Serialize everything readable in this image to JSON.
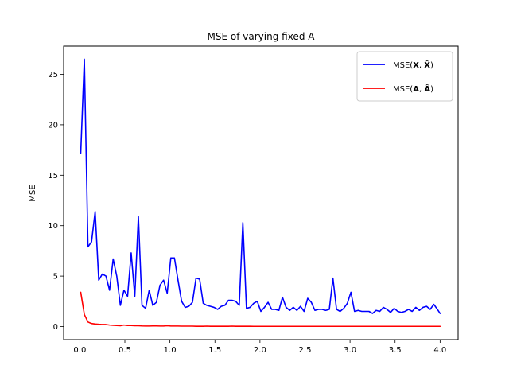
{
  "chart_data": {
    "type": "line",
    "title": "MSE of varying fixed A",
    "xlabel": "",
    "ylabel": "MSE",
    "xlim": [
      -0.18,
      4.2
    ],
    "ylim": [
      -1.3,
      27.8
    ],
    "xticks": [
      0.0,
      0.5,
      1.0,
      1.5,
      2.0,
      2.5,
      3.0,
      3.5,
      4.0
    ],
    "xtick_labels": [
      "0.0",
      "0.5",
      "1.0",
      "1.5",
      "2.0",
      "2.5",
      "3.0",
      "3.5",
      "4.0"
    ],
    "yticks": [
      0,
      5,
      10,
      15,
      20,
      25
    ],
    "ytick_labels": [
      "0",
      "5",
      "10",
      "15",
      "20",
      "25"
    ],
    "grid": false,
    "legend_position": "top-right",
    "series": [
      {
        "name": "MSE(X, X̂)",
        "legend_prefix": "MSE(",
        "legend_a": "X",
        "legend_sep": ", ",
        "legend_b": "X̂",
        "legend_suffix": ")",
        "color": "#0000ff",
        "x": [
          0.01,
          0.05,
          0.09,
          0.13,
          0.17,
          0.21,
          0.25,
          0.29,
          0.33,
          0.37,
          0.41,
          0.45,
          0.49,
          0.53,
          0.57,
          0.61,
          0.65,
          0.69,
          0.73,
          0.77,
          0.81,
          0.85,
          0.89,
          0.93,
          0.97,
          1.01,
          1.05,
          1.09,
          1.13,
          1.17,
          1.21,
          1.25,
          1.29,
          1.33,
          1.37,
          1.41,
          1.45,
          1.49,
          1.53,
          1.57,
          1.61,
          1.65,
          1.69,
          1.73,
          1.77,
          1.81,
          1.85,
          1.89,
          1.93,
          1.97,
          2.01,
          2.05,
          2.09,
          2.13,
          2.17,
          2.21,
          2.25,
          2.29,
          2.33,
          2.37,
          2.41,
          2.45,
          2.49,
          2.53,
          2.57,
          2.61,
          2.65,
          2.69,
          2.73,
          2.77,
          2.81,
          2.85,
          2.89,
          2.93,
          2.97,
          3.01,
          3.05,
          3.09,
          3.13,
          3.17,
          3.21,
          3.25,
          3.29,
          3.33,
          3.37,
          3.41,
          3.45,
          3.49,
          3.53,
          3.57,
          3.61,
          3.65,
          3.69,
          3.73,
          3.77,
          3.81,
          3.85,
          3.89,
          3.93,
          3.97,
          4.0
        ],
        "y": [
          17.2,
          26.5,
          7.9,
          8.4,
          11.4,
          4.6,
          5.2,
          5.0,
          3.6,
          6.7,
          5.0,
          2.1,
          3.6,
          3.0,
          7.3,
          3.0,
          10.9,
          2.1,
          1.8,
          3.6,
          2.1,
          2.4,
          4.1,
          4.6,
          3.3,
          6.8,
          6.8,
          4.6,
          2.5,
          1.9,
          2.0,
          2.4,
          4.8,
          4.7,
          2.3,
          2.1,
          2.0,
          1.9,
          1.7,
          2.0,
          2.1,
          2.6,
          2.6,
          2.5,
          2.1,
          10.3,
          1.8,
          1.9,
          2.3,
          2.5,
          1.5,
          1.9,
          2.4,
          1.7,
          1.7,
          1.6,
          2.9,
          1.9,
          1.6,
          1.9,
          1.6,
          2.0,
          1.5,
          2.8,
          2.4,
          1.6,
          1.7,
          1.7,
          1.6,
          1.7,
          4.8,
          1.7,
          1.5,
          1.8,
          2.3,
          3.4,
          1.5,
          1.6,
          1.5,
          1.5,
          1.5,
          1.3,
          1.6,
          1.5,
          1.9,
          1.7,
          1.4,
          1.8,
          1.5,
          1.4,
          1.5,
          1.7,
          1.5,
          1.9,
          1.6,
          1.9,
          2.0,
          1.7,
          2.2,
          1.7,
          1.3
        ]
      },
      {
        "name": "MSE(A, Â)",
        "legend_prefix": "MSE(",
        "legend_a": "A",
        "legend_sep": ", ",
        "legend_b": "Â",
        "legend_suffix": ")",
        "color": "#ff0000",
        "x": [
          0.01,
          0.05,
          0.09,
          0.13,
          0.17,
          0.21,
          0.25,
          0.29,
          0.33,
          0.37,
          0.41,
          0.45,
          0.49,
          0.53,
          0.57,
          0.61,
          0.65,
          0.69,
          0.73,
          0.77,
          0.81,
          0.85,
          0.89,
          0.93,
          0.97,
          1.01,
          1.05,
          1.09,
          1.13,
          1.17,
          1.21,
          1.25,
          1.29,
          1.33,
          1.37,
          1.41,
          1.45,
          1.49,
          1.53,
          1.57,
          1.61,
          1.65,
          1.69,
          1.73,
          1.77,
          1.81,
          1.85,
          1.89,
          1.93,
          1.97,
          2.01,
          2.05,
          2.09,
          2.13,
          2.17,
          2.21,
          2.25,
          2.29,
          2.33,
          2.37,
          2.41,
          2.45,
          2.49,
          2.53,
          2.57,
          2.61,
          2.65,
          2.69,
          2.73,
          2.77,
          2.81,
          2.85,
          2.89,
          2.93,
          2.97,
          3.01,
          3.05,
          3.09,
          3.13,
          3.17,
          3.21,
          3.25,
          3.29,
          3.33,
          3.37,
          3.41,
          3.45,
          3.49,
          3.53,
          3.57,
          3.61,
          3.65,
          3.69,
          3.73,
          3.77,
          3.81,
          3.85,
          3.89,
          3.93,
          3.97,
          4.0
        ],
        "y": [
          3.4,
          1.2,
          0.45,
          0.3,
          0.25,
          0.22,
          0.2,
          0.2,
          0.15,
          0.12,
          0.1,
          0.08,
          0.15,
          0.1,
          0.1,
          0.08,
          0.08,
          0.06,
          0.05,
          0.05,
          0.06,
          0.06,
          0.05,
          0.05,
          0.08,
          0.05,
          0.05,
          0.05,
          0.04,
          0.04,
          0.04,
          0.04,
          0.03,
          0.03,
          0.03,
          0.04,
          0.03,
          0.03,
          0.03,
          0.03,
          0.03,
          0.03,
          0.04,
          0.03,
          0.03,
          0.03,
          0.03,
          0.03,
          0.02,
          0.02,
          0.02,
          0.02,
          0.02,
          0.02,
          0.02,
          0.02,
          0.02,
          0.02,
          0.02,
          0.02,
          0.02,
          0.02,
          0.02,
          0.02,
          0.02,
          0.02,
          0.02,
          0.02,
          0.02,
          0.02,
          0.02,
          0.02,
          0.02,
          0.02,
          0.02,
          0.02,
          0.02,
          0.02,
          0.02,
          0.02,
          0.02,
          0.02,
          0.02,
          0.02,
          0.02,
          0.02,
          0.02,
          0.02,
          0.02,
          0.02,
          0.02,
          0.02,
          0.02,
          0.02,
          0.02,
          0.02,
          0.02,
          0.02,
          0.02,
          0.02,
          0.02
        ]
      }
    ]
  }
}
